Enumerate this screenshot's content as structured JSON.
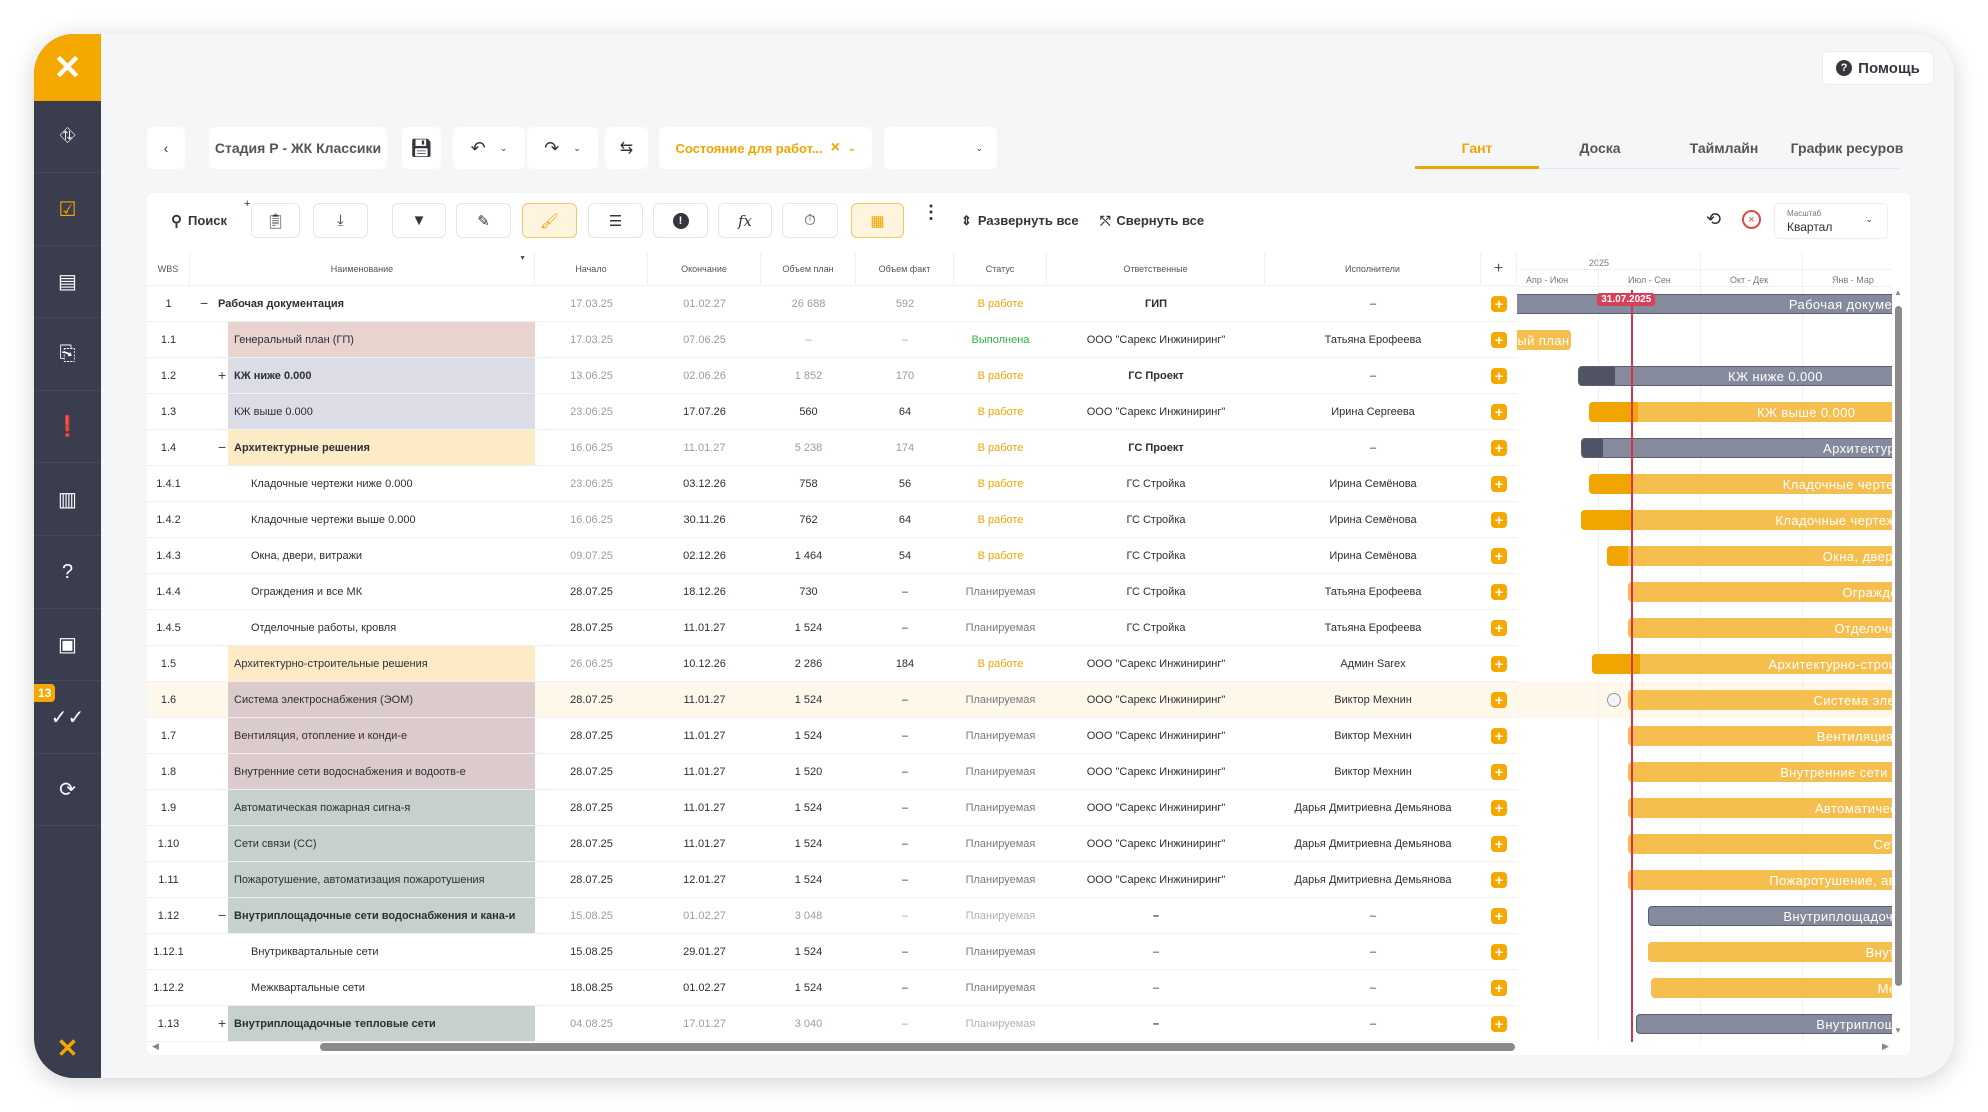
{
  "help_label": "Помощь",
  "sidebar": {
    "badge": "13",
    "items": [
      "map",
      "tasks",
      "document",
      "documents-sync",
      "clipboard-alert",
      "chart",
      "help",
      "catalog",
      "approvals",
      "sync"
    ],
    "active": 1
  },
  "topbar": {
    "project": "Стадия Р - ЖК Классики",
    "filter_label": "Состояние для работ...",
    "filter_clear": "×",
    "empty_select": ""
  },
  "tabs": [
    "Гант",
    "Доска",
    "Таймлайн",
    "График ресуров"
  ],
  "toolbar": {
    "search": "Поиск",
    "expand_all": "Развернуть все",
    "collapse_all": "Свернуть все",
    "scale_caption": "Масштаб",
    "scale_value": "Квартал"
  },
  "columns": [
    "WBS",
    "Наименование",
    "Начало",
    "Окончание",
    "Объем план",
    "Объем факт",
    "Статус",
    "Ответственные",
    "Исполнители"
  ],
  "timeline": {
    "year": "2025",
    "quarters": [
      "Апр - Июн",
      "Июл - Сен",
      "Окт - Дек",
      "Янв - Мар"
    ],
    "today": "31.07.2025"
  },
  "colors": {
    "accent": "#f5a800",
    "in_progress": "#f0a500",
    "done": "#2db34a",
    "planned": "#7a7a7a",
    "today": "#d6334f"
  },
  "rows": [
    {
      "wbs": "1",
      "name": "Рабочая документация",
      "start": "17.03.25",
      "end": "01.02.27",
      "plan": "26 688",
      "fact": "592",
      "status": "В работе",
      "resp": "ГИП",
      "exec": "–",
      "level": 1,
      "toggle": "−",
      "kind": "summary",
      "started": true,
      "color": ""
    },
    {
      "wbs": "1.1",
      "name": "Генеральный план (ГП)",
      "start": "17.03.25",
      "end": "07.06.25",
      "plan": "–",
      "fact": "–",
      "status": "Выполнена",
      "resp": "ООО \"Сарекс Инжиниринг\"",
      "exec": "Татьяна Ерофеева",
      "level": 2,
      "toggle": "",
      "kind": "done",
      "started": true,
      "color": "#e8d3cf"
    },
    {
      "wbs": "1.2",
      "name": "КЖ ниже 0.000",
      "start": "13.06.25",
      "end": "02.06.26",
      "plan": "1 852",
      "fact": "170",
      "status": "В работе",
      "resp": "ГС Проект",
      "exec": "–",
      "level": 2,
      "toggle": "+",
      "kind": "summary",
      "started": true,
      "color": "#dcdce6"
    },
    {
      "wbs": "1.3",
      "name": "КЖ выше 0.000",
      "start": "23.06.25",
      "end": "17.07.26",
      "plan": "560",
      "fact": "64",
      "status": "В работе",
      "resp": "ООО \"Сарекс Инжиниринг\"",
      "exec": "Ирина Сергеева",
      "level": 2,
      "toggle": "",
      "kind": "task",
      "started": true,
      "color": "#dcdce6"
    },
    {
      "wbs": "1.4",
      "name": "Архитектурные решения",
      "start": "16.06.25",
      "end": "11.01.27",
      "plan": "5 238",
      "fact": "174",
      "status": "В работе",
      "resp": "ГС Проект",
      "exec": "–",
      "level": 2,
      "toggle": "−",
      "kind": "summary",
      "started": true,
      "color": "#fdebc6"
    },
    {
      "wbs": "1.4.1",
      "name": "Кладочные чертежи ниже 0.000",
      "start": "23.06.25",
      "end": "03.12.26",
      "plan": "758",
      "fact": "56",
      "status": "В работе",
      "resp": "ГС Стройка",
      "exec": "Ирина Семёнова",
      "level": 3,
      "toggle": "",
      "kind": "task",
      "started": true,
      "color": ""
    },
    {
      "wbs": "1.4.2",
      "name": "Кладочные чертежи выше 0.000",
      "start": "16.06.25",
      "end": "30.11.26",
      "plan": "762",
      "fact": "64",
      "status": "В работе",
      "resp": "ГС Стройка",
      "exec": "Ирина Семёнова",
      "level": 3,
      "toggle": "",
      "kind": "task",
      "started": true,
      "color": ""
    },
    {
      "wbs": "1.4.3",
      "name": "Окна, двери, витражи",
      "start": "09.07.25",
      "end": "02.12.26",
      "plan": "1 464",
      "fact": "54",
      "status": "В работе",
      "resp": "ГС Стройка",
      "exec": "Ирина Семёнова",
      "level": 3,
      "toggle": "",
      "kind": "task",
      "started": true,
      "color": ""
    },
    {
      "wbs": "1.4.4",
      "name": "Ограждения и все МК",
      "start": "28.07.25",
      "end": "18.12.26",
      "plan": "730",
      "fact": "–",
      "status": "Планируемая",
      "resp": "ГС Стройка",
      "exec": "Татьяна Ерофеева",
      "level": 3,
      "toggle": "",
      "kind": "task",
      "started": false,
      "color": ""
    },
    {
      "wbs": "1.4.5",
      "name": "Отделочные работы, кровля",
      "start": "28.07.25",
      "end": "11.01.27",
      "plan": "1 524",
      "fact": "–",
      "status": "Планируемая",
      "resp": "ГС Стройка",
      "exec": "Татьяна Ерофеева",
      "level": 3,
      "toggle": "",
      "kind": "task",
      "started": false,
      "color": ""
    },
    {
      "wbs": "1.5",
      "name": "Архитектурно-строительные решения",
      "start": "26.06.25",
      "end": "10.12.26",
      "plan": "2 286",
      "fact": "184",
      "status": "В работе",
      "resp": "ООО \"Сарекс Инжиниринг\"",
      "exec": "Админ Sarex",
      "level": 2,
      "toggle": "",
      "kind": "task",
      "started": true,
      "color": "#fdebc6"
    },
    {
      "wbs": "1.6",
      "name": "Система электроснабжения (ЭОМ)",
      "start": "28.07.25",
      "end": "11.01.27",
      "plan": "1 524",
      "fact": "–",
      "status": "Планируемая",
      "resp": "ООО \"Сарекс Инжиниринг\"",
      "exec": "Виктор Мехнин",
      "level": 2,
      "toggle": "",
      "kind": "task",
      "started": false,
      "color": "#dccbcc",
      "selected": true
    },
    {
      "wbs": "1.7",
      "name": "Вентиляция, отопление и конди-е",
      "start": "28.07.25",
      "end": "11.01.27",
      "plan": "1 524",
      "fact": "–",
      "status": "Планируемая",
      "resp": "ООО \"Сарекс Инжиниринг\"",
      "exec": "Виктор Мехнин",
      "level": 2,
      "toggle": "",
      "kind": "task",
      "started": false,
      "color": "#dccbcc"
    },
    {
      "wbs": "1.8",
      "name": "Внутренние сети водоснабжения и водоотв-е",
      "start": "28.07.25",
      "end": "11.01.27",
      "plan": "1 520",
      "fact": "–",
      "status": "Планируемая",
      "resp": "ООО \"Сарекс Инжиниринг\"",
      "exec": "Виктор Мехнин",
      "level": 2,
      "toggle": "",
      "kind": "task",
      "started": false,
      "color": "#dccbcc"
    },
    {
      "wbs": "1.9",
      "name": "Автоматическая пожарная сигна-я",
      "start": "28.07.25",
      "end": "11.01.27",
      "plan": "1 524",
      "fact": "–",
      "status": "Планируемая",
      "resp": "ООО \"Сарекс Инжиниринг\"",
      "exec": "Дарья Дмитриевна Демьянова",
      "level": 2,
      "toggle": "",
      "kind": "task",
      "started": false,
      "color": "#c6d0cd"
    },
    {
      "wbs": "1.10",
      "name": "Сети связи (СС)",
      "start": "28.07.25",
      "end": "11.01.27",
      "plan": "1 524",
      "fact": "–",
      "status": "Планируемая",
      "resp": "ООО \"Сарекс Инжиниринг\"",
      "exec": "Дарья Дмитриевна Демьянова",
      "level": 2,
      "toggle": "",
      "kind": "task",
      "started": false,
      "color": "#c6d0cd"
    },
    {
      "wbs": "1.11",
      "name": "Пожаротушение, автоматизация пожаротушения",
      "start": "28.07.25",
      "end": "12.01.27",
      "plan": "1 524",
      "fact": "–",
      "status": "Планируемая",
      "resp": "ООО \"Сарекс Инжиниринг\"",
      "exec": "Дарья Дмитриевна Демьянова",
      "level": 2,
      "toggle": "",
      "kind": "task",
      "started": false,
      "color": "#c6d0cd"
    },
    {
      "wbs": "1.12",
      "name": "Внутриплощадочные сети водоснабжения и кана-и",
      "start": "15.08.25",
      "end": "01.02.27",
      "plan": "3 048",
      "fact": "–",
      "status": "Планируемая",
      "resp": "–",
      "exec": "–",
      "level": 2,
      "toggle": "−",
      "kind": "summary",
      "started": false,
      "color": "#c6d0cd"
    },
    {
      "wbs": "1.12.1",
      "name": "Внутриквартальные сети",
      "start": "15.08.25",
      "end": "29.01.27",
      "plan": "1 524",
      "fact": "–",
      "status": "Планируемая",
      "resp": "–",
      "exec": "–",
      "level": 3,
      "toggle": "",
      "kind": "task",
      "started": false,
      "color": ""
    },
    {
      "wbs": "1.12.2",
      "name": "Межквартальные сети",
      "start": "18.08.25",
      "end": "01.02.27",
      "plan": "1 524",
      "fact": "–",
      "status": "Планируемая",
      "resp": "–",
      "exec": "–",
      "level": 3,
      "toggle": "",
      "kind": "task",
      "started": false,
      "color": ""
    },
    {
      "wbs": "1.13",
      "name": "Внутриплощадочные тепловые сети",
      "start": "04.08.25",
      "end": "17.01.27",
      "plan": "3 040",
      "fact": "–",
      "status": "Планируемая",
      "resp": "–",
      "exec": "–",
      "level": 2,
      "toggle": "+",
      "kind": "summary",
      "started": false,
      "color": "#c6d0cd"
    }
  ]
}
